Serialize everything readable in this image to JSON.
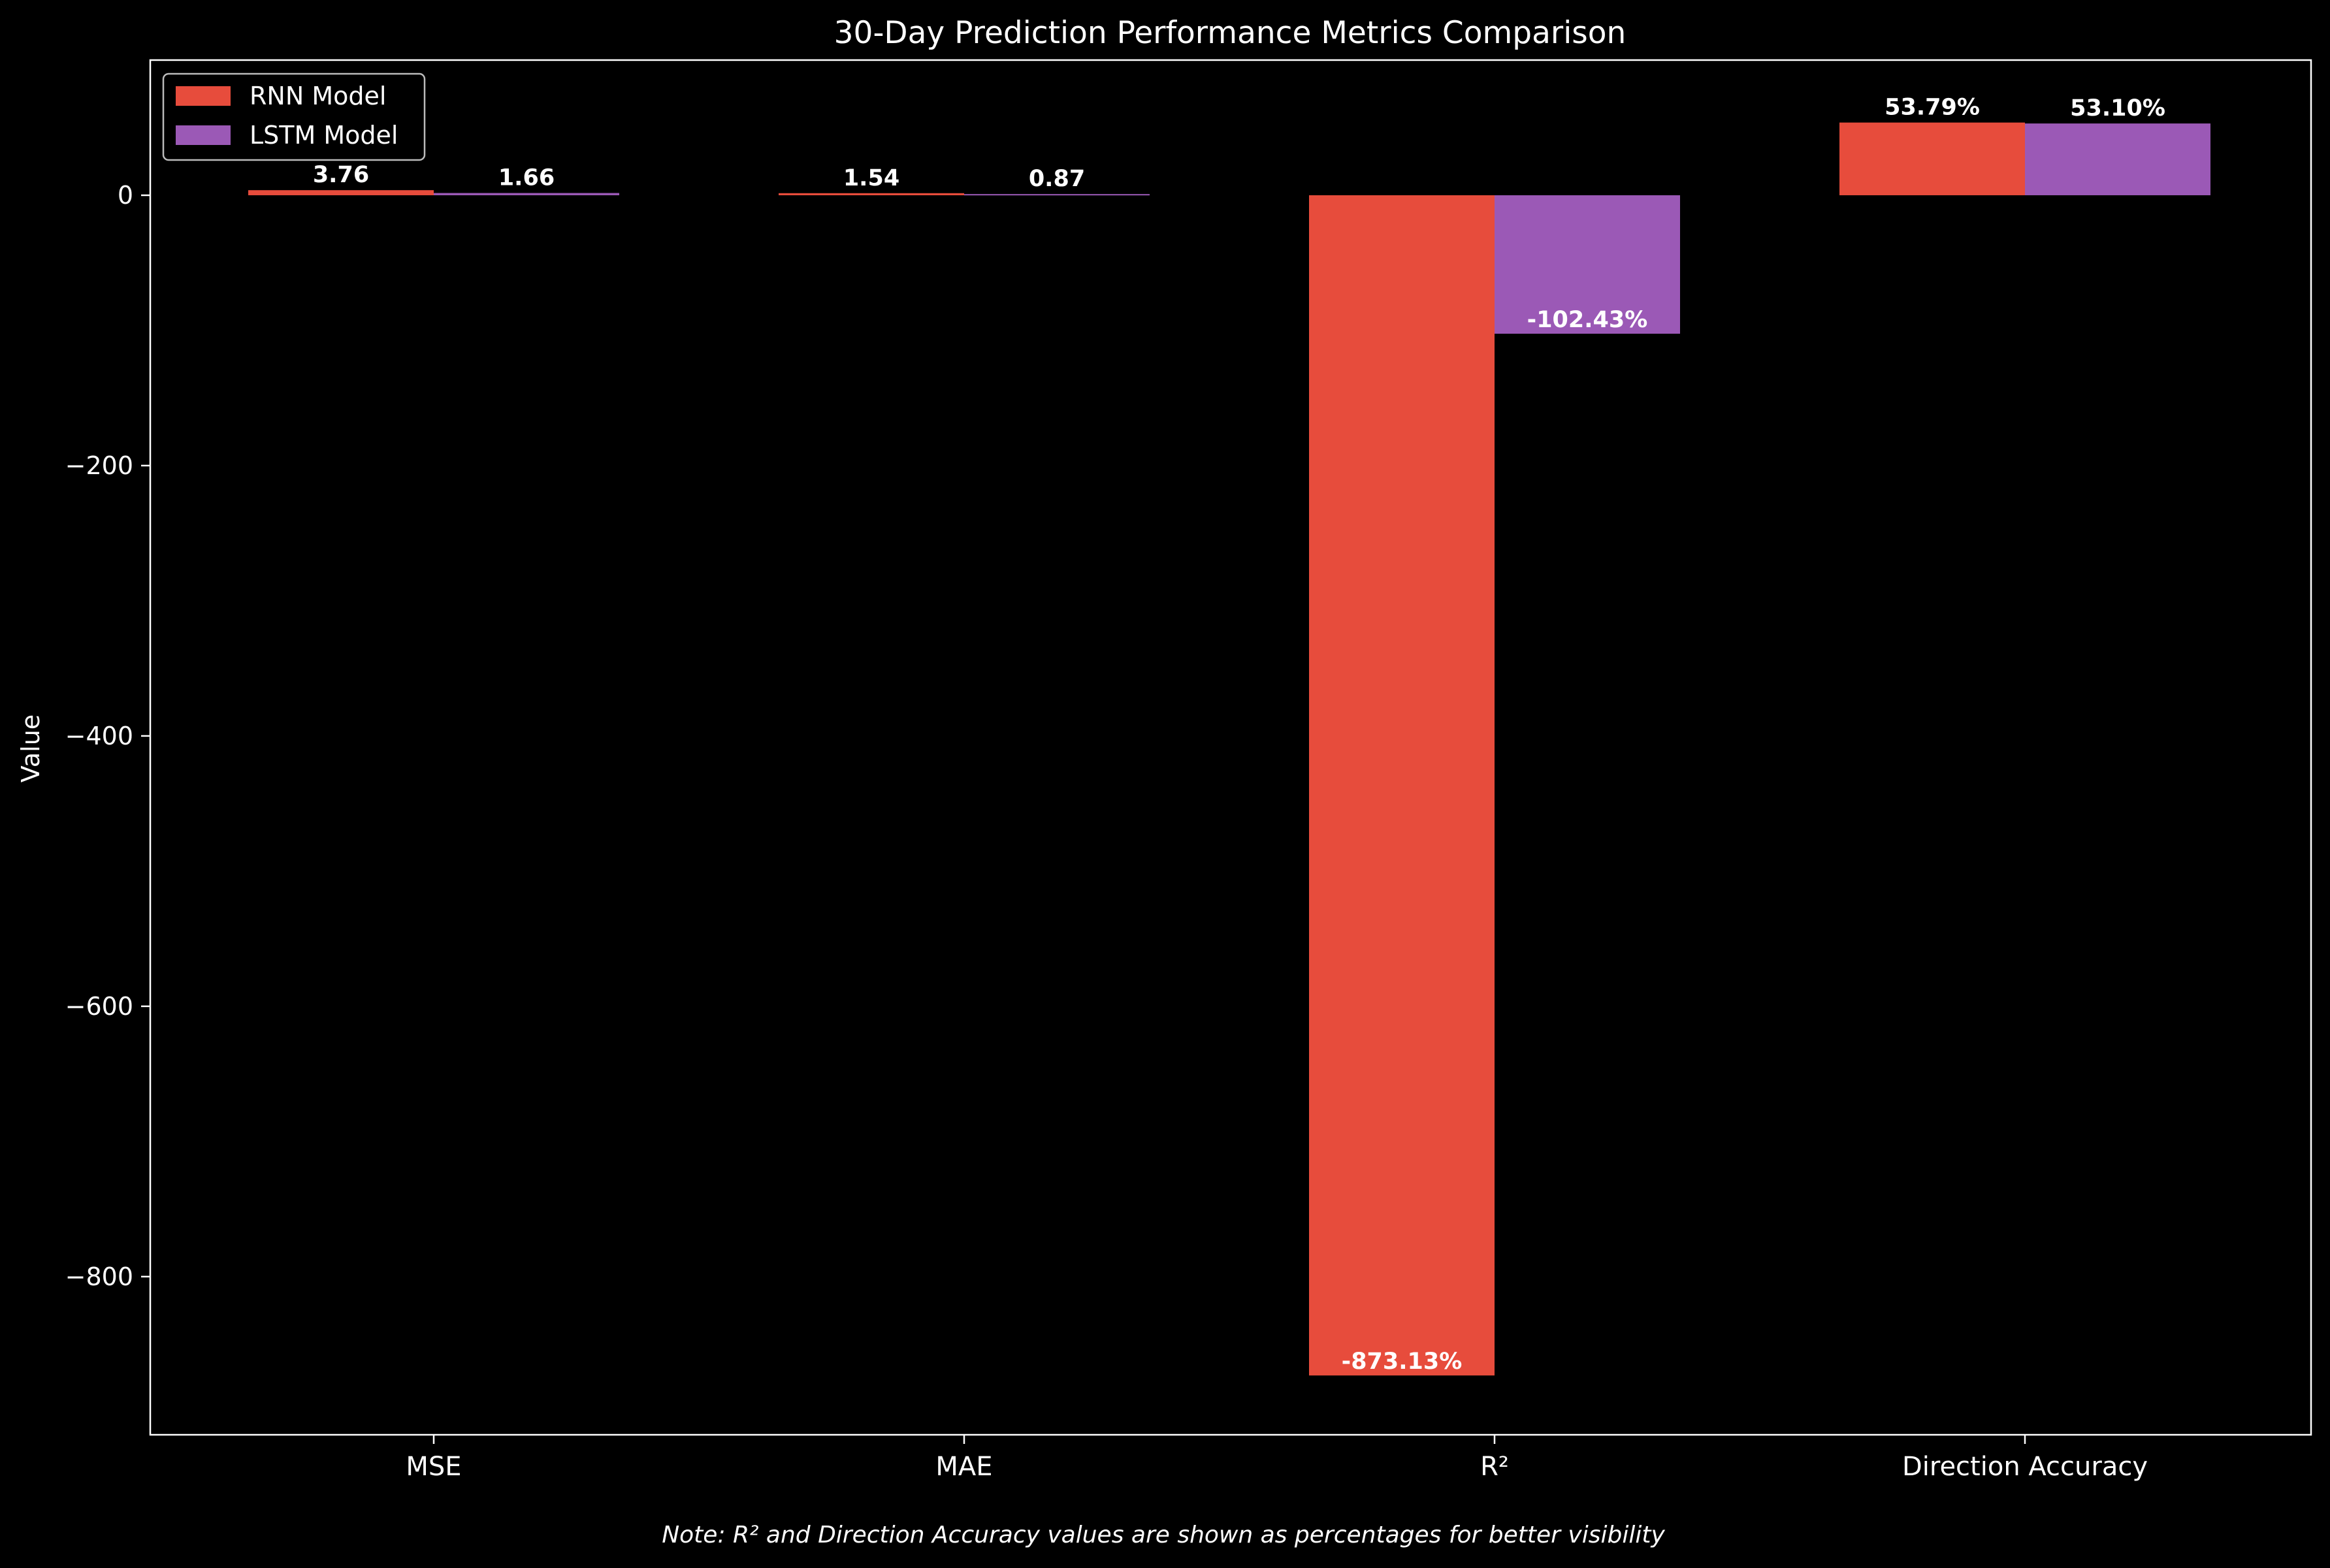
{
  "chart_data": {
    "type": "bar",
    "title": "30-Day Prediction Performance Metrics Comparison",
    "xlabel": "",
    "ylabel": "Value",
    "ylim": [
      -917,
      100
    ],
    "yticks": [
      0,
      -200,
      -400,
      -600,
      -800
    ],
    "ytick_labels": [
      "0",
      "−200",
      "−400",
      "−600",
      "−800"
    ],
    "categories": [
      "MSE",
      "MAE",
      "R²",
      "Direction Accuracy"
    ],
    "series": [
      {
        "name": "RNN Model",
        "color": "#e74c3c",
        "values": [
          3.76,
          1.54,
          -873.13,
          53.79
        ],
        "labels": [
          "3.76",
          "1.54",
          "-873.13%",
          "53.79%"
        ]
      },
      {
        "name": "LSTM Model",
        "color": "#9b59b6",
        "values": [
          1.66,
          0.87,
          -102.43,
          53.1
        ],
        "labels": [
          "1.66",
          "0.87",
          "-102.43%",
          "53.10%"
        ]
      }
    ],
    "legend_position": "top-left",
    "grid": false,
    "note": "Note: R² and Direction Accuracy values are shown as percentages for better visibility"
  }
}
